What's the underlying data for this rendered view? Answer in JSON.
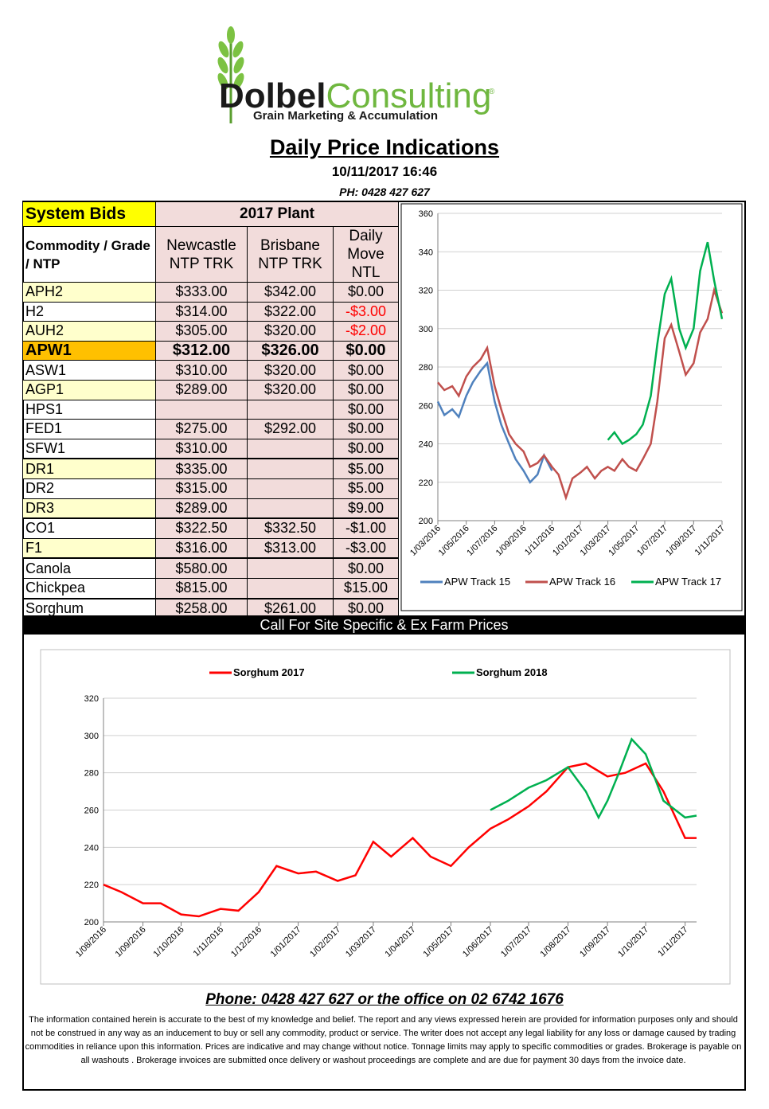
{
  "logo": {
    "name_dark": "Dolbel",
    "name_green": "Consulting",
    "mark": "®",
    "tagline": "Grain Marketing & Accumulation"
  },
  "header": {
    "title": "Daily Price Indications",
    "datetime": "10/11/2017 16:46",
    "phone": "PH: 0428 427 627"
  },
  "table": {
    "corner": "System Bids",
    "plant": "2017 Plant",
    "columns": [
      "Commodity / Grade / NTP",
      "Newcastle NTP TRK",
      "Brisbane NTP TRK",
      "Daily Move NTL"
    ],
    "rows": [
      [
        "APH2",
        "$333.00",
        "$342.00",
        "$0.00"
      ],
      [
        "H2",
        "$314.00",
        "$322.00",
        "-$3.00"
      ],
      [
        "AUH2",
        "$305.00",
        "$320.00",
        "-$2.00"
      ],
      [
        "APW1",
        "$312.00",
        "$326.00",
        "$0.00"
      ],
      [
        "ASW1",
        "$310.00",
        "$320.00",
        "$0.00"
      ],
      [
        "AGP1",
        "$289.00",
        "$320.00",
        "$0.00"
      ],
      [
        "HPS1",
        null,
        null,
        "$0.00"
      ],
      [
        "FED1",
        "$275.00",
        "$292.00",
        "$0.00"
      ],
      [
        "SFW1",
        "$310.00",
        null,
        "$0.00"
      ],
      [
        "DR1",
        "$335.00",
        null,
        "$5.00"
      ],
      [
        "DR2",
        "$315.00",
        null,
        "$5.00"
      ],
      [
        "DR3",
        "$289.00",
        null,
        "$9.00"
      ],
      [
        "CO1",
        "$322.50",
        "$332.50",
        "-$1.00"
      ],
      [
        "F1",
        "$316.00",
        "$313.00",
        "-$3.00"
      ],
      [
        "Canola",
        "$580.00",
        null,
        "$0.00"
      ],
      [
        "Chickpea",
        "$815.00",
        null,
        "$15.00"
      ],
      [
        "Sorghum",
        "$258.00",
        "$261.00",
        "$0.00"
      ]
    ]
  },
  "banner": "Call For Site Specific & Ex Farm Prices",
  "chart_data": [
    {
      "type": "line",
      "ylim": [
        200,
        360
      ],
      "yticks": [
        200,
        220,
        240,
        260,
        280,
        300,
        320,
        340,
        360
      ],
      "grid": true,
      "legend": "bottom",
      "xlim": [
        "1/03/2016",
        "1/11/2017"
      ],
      "xticks": [
        "1/03/2016",
        "1/05/2016",
        "1/07/2016",
        "1/09/2016",
        "1/11/2016",
        "1/01/2017",
        "1/03/2017",
        "1/05/2017",
        "1/07/2017",
        "1/09/2017",
        "1/11/2017"
      ],
      "series": [
        {
          "name": "APW Track 15",
          "color": "#4f81bd",
          "x": [
            "1/03/2016",
            "15/03/2016",
            "1/04/2016",
            "15/04/2016",
            "1/05/2016",
            "15/05/2016",
            "1/06/2016",
            "15/06/2016",
            "1/07/2016",
            "15/07/2016",
            "1/08/2016",
            "15/08/2016",
            "1/09/2016",
            "15/09/2016",
            "1/10/2016",
            "15/10/2016",
            "1/11/2016"
          ],
          "values": [
            262,
            255,
            258,
            254,
            265,
            272,
            278,
            282,
            262,
            250,
            240,
            232,
            226,
            220,
            224,
            234,
            226
          ]
        },
        {
          "name": "APW Track 16",
          "color": "#c0504d",
          "x": [
            "1/03/2016",
            "15/03/2016",
            "1/04/2016",
            "15/04/2016",
            "1/05/2016",
            "15/05/2016",
            "1/06/2016",
            "15/06/2016",
            "1/07/2016",
            "15/07/2016",
            "1/08/2016",
            "15/08/2016",
            "1/09/2016",
            "15/09/2016",
            "1/10/2016",
            "15/10/2016",
            "1/11/2016",
            "15/11/2016",
            "1/12/2016",
            "15/12/2016",
            "1/01/2017",
            "15/01/2017",
            "1/02/2017",
            "15/02/2017",
            "1/03/2017",
            "15/03/2017",
            "1/04/2017",
            "15/04/2017",
            "1/05/2017",
            "15/05/2017",
            "1/06/2017",
            "15/06/2017",
            "1/07/2017",
            "15/07/2017",
            "1/08/2017",
            "15/08/2017",
            "1/09/2017",
            "15/09/2017",
            "1/10/2017",
            "15/10/2017",
            "1/11/2017"
          ],
          "values": [
            272,
            268,
            270,
            265,
            275,
            280,
            284,
            290,
            270,
            258,
            245,
            240,
            236,
            228,
            230,
            234,
            228,
            224,
            212,
            222,
            225,
            228,
            222,
            226,
            228,
            226,
            232,
            228,
            226,
            232,
            240,
            262,
            295,
            302,
            288,
            276,
            282,
            298,
            305,
            320,
            308
          ]
        },
        {
          "name": "APW Track 17",
          "color": "#00b050",
          "x": [
            "1/03/2017",
            "15/03/2017",
            "1/04/2017",
            "15/04/2017",
            "1/05/2017",
            "15/05/2017",
            "1/06/2017",
            "15/06/2017",
            "1/07/2017",
            "15/07/2017",
            "1/08/2017",
            "15/08/2017",
            "1/09/2017",
            "15/09/2017",
            "1/10/2017",
            "15/10/2017",
            "1/11/2017"
          ],
          "values": [
            242,
            246,
            240,
            242,
            245,
            250,
            265,
            292,
            318,
            326,
            300,
            290,
            300,
            330,
            345,
            325,
            305
          ]
        }
      ]
    },
    {
      "type": "line",
      "ylim": [
        200,
        320
      ],
      "yticks": [
        200,
        220,
        240,
        260,
        280,
        300,
        320
      ],
      "grid": true,
      "legend": "top",
      "xlim": [
        "1/08/2016",
        "10/11/2017"
      ],
      "xticks": [
        "1/08/2016",
        "1/09/2016",
        "1/10/2016",
        "1/11/2016",
        "1/12/2016",
        "1/01/2017",
        "1/02/2017",
        "1/03/2017",
        "1/04/2017",
        "1/05/2017",
        "1/06/2017",
        "1/07/2017",
        "1/08/2017",
        "1/09/2017",
        "1/10/2017",
        "1/11/2017"
      ],
      "series": [
        {
          "name": "Sorghum 2017",
          "color": "#ff0000",
          "x": [
            "1/08/2016",
            "15/08/2016",
            "1/09/2016",
            "15/09/2016",
            "1/10/2016",
            "15/10/2016",
            "1/11/2016",
            "15/11/2016",
            "1/12/2016",
            "15/12/2016",
            "1/01/2017",
            "15/01/2017",
            "1/02/2017",
            "15/02/2017",
            "1/03/2017",
            "15/03/2017",
            "1/04/2017",
            "15/04/2017",
            "1/05/2017",
            "15/05/2017",
            "1/06/2017",
            "15/06/2017",
            "1/07/2017",
            "15/07/2017",
            "1/08/2017",
            "15/08/2017",
            "1/09/2017",
            "15/09/2017",
            "1/10/2017",
            "15/10/2017",
            "1/11/2017",
            "10/11/2017"
          ],
          "values": [
            220,
            216,
            210,
            210,
            204,
            203,
            207,
            206,
            216,
            230,
            226,
            227,
            222,
            225,
            243,
            235,
            245,
            235,
            230,
            240,
            250,
            255,
            262,
            270,
            283,
            285,
            278,
            280,
            285,
            270,
            245,
            245
          ]
        },
        {
          "name": "Sorghum 2018",
          "color": "#00b050",
          "x": [
            "1/06/2017",
            "15/06/2017",
            "1/07/2017",
            "15/07/2017",
            "1/08/2017",
            "15/08/2017",
            "25/08/2017",
            "1/09/2017",
            "10/09/2017",
            "20/09/2017",
            "1/10/2017",
            "15/10/2017",
            "1/11/2017",
            "10/11/2017"
          ],
          "values": [
            260,
            265,
            272,
            276,
            283,
            270,
            256,
            265,
            280,
            298,
            290,
            265,
            256,
            257
          ]
        }
      ]
    }
  ],
  "footer": {
    "phone": "Phone: 0428 427 627 or the office on 02 6742 1676",
    "disclaimer": "The information contained herein is accurate to the best of my knowledge and belief.  The report and any views expressed herein are provided for information purposes only and should not be construed in any way as an inducement to buy or sell any commodity, product or service. The writer does not accept any legal liability for any loss or damage caused by trading commodities in reliance upon this information. Prices are indicative and may change without notice. Tonnage limits may apply to specific commodities or grades.  Brokerage is payable on all washouts . Brokerage invoices are submitted once delivery or washout proceedings are complete and are due for payment 30 days from the invoice date."
  }
}
